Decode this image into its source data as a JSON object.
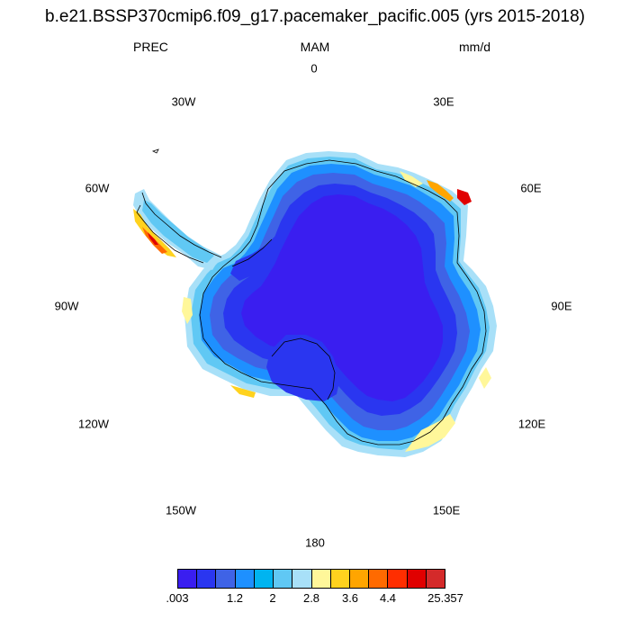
{
  "title": "b.e21.BSSP370cmip6.f09_g17.pacemaker_pacific.005 (yrs 2015-2018)",
  "subtitles": {
    "left": "PREC",
    "center": "MAM",
    "right": "mm/d"
  },
  "map": {
    "projection": "south-polar-stereographic",
    "longitude_labels": [
      "0",
      "30E",
      "60E",
      "90E",
      "120E",
      "150E",
      "180",
      "150W",
      "120W",
      "90W",
      "60W",
      "30W"
    ],
    "interior_value_mm_per_day": "< 0.5",
    "high_precip_regions": [
      "Antarctic Peninsula west coast",
      "Dronning Maud Land coast near 55E",
      "East Antarctic coast 110E-150E"
    ]
  },
  "colorbar": {
    "colors": [
      "#3a1ef0",
      "#2a36f0",
      "#3f63e6",
      "#1e90ff",
      "#00b4f0",
      "#60c8f4",
      "#a8e0f8",
      "#fff79a",
      "#ffd21e",
      "#ffa500",
      "#ff6a00",
      "#ff2e00",
      "#e00000",
      "#d42a2a"
    ],
    "tick_labels": [
      ".003",
      "1.2",
      "2",
      "2.8",
      "3.6",
      "4.4",
      "25.357"
    ]
  }
}
